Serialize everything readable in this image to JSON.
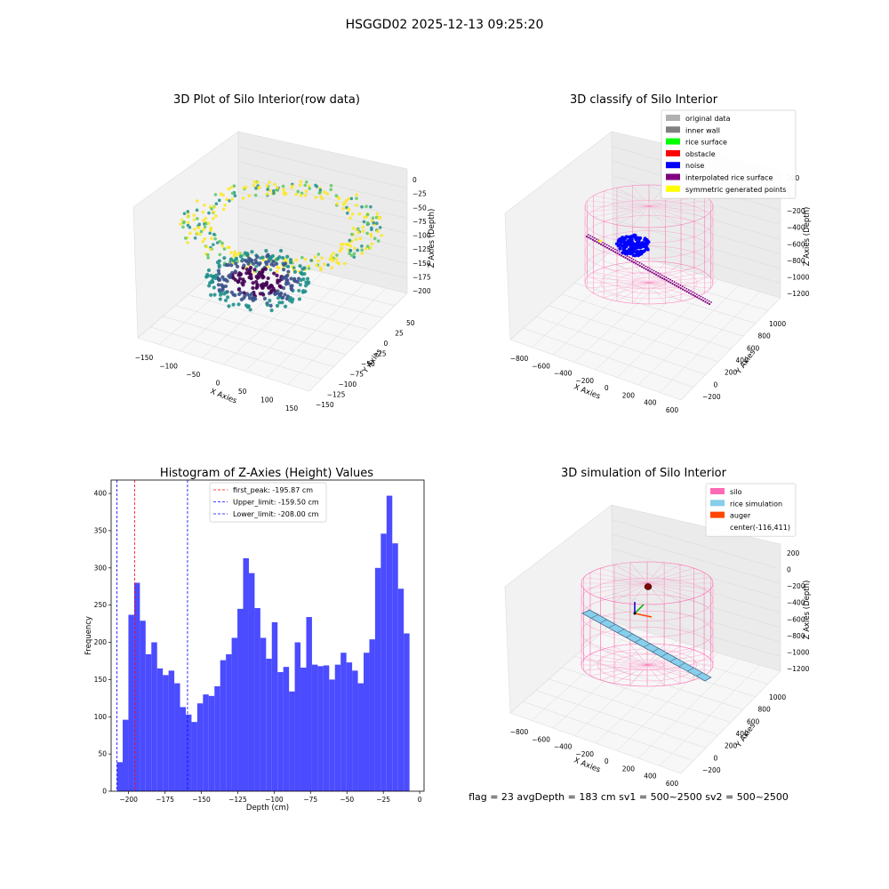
{
  "figure": {
    "suptitle": "HSGGD02 2025-12-13 09:25:20",
    "status_line": "flag = 23   avgDepth = 183 cm  sv1 = 500~2500  sv2 = 500~2500"
  },
  "plot3d_raw": {
    "title": "3D Plot of Silo Interior(row data)",
    "xlabel": "X Axies",
    "ylabel": "Y Axies",
    "zlabel": "Z Axies (Depth)",
    "x_ticks": [
      "−150",
      "−100",
      "−50",
      "0",
      "50",
      "100",
      "150"
    ],
    "y_ticks": [
      "−150",
      "−125",
      "−100",
      "−75",
      "−50",
      "−25",
      "0",
      "25",
      "50"
    ],
    "z_ticks": [
      "0",
      "−25",
      "−50",
      "−75",
      "−100",
      "−125",
      "−150",
      "−175",
      "−200"
    ],
    "colormap": [
      "#440154",
      "#3b528b",
      "#21908c",
      "#5dc863",
      "#fde725"
    ]
  },
  "plot3d_classify": {
    "title": "3D classify of Silo Interior",
    "xlabel": "X Axies",
    "ylabel": "Y Axies",
    "zlabel": "Z Axies (Depth)",
    "x_ticks": [
      "−800",
      "−600",
      "−400",
      "−200",
      "0",
      "200",
      "400",
      "600"
    ],
    "y_ticks": [
      "−200",
      "0",
      "200",
      "400",
      "600",
      "800",
      "1000"
    ],
    "z_ticks": [
      "200",
      "0",
      "−200",
      "−400",
      "−600",
      "−800",
      "−1000",
      "−1200"
    ],
    "legend": [
      {
        "label": "original data",
        "color": "#b0b0b0"
      },
      {
        "label": "inner wall",
        "color": "#808080"
      },
      {
        "label": "rice surface",
        "color": "#00ff00"
      },
      {
        "label": "obstacle",
        "color": "#ff0000"
      },
      {
        "label": "noise",
        "color": "#0000ff"
      },
      {
        "label": "interpolated rice surface",
        "color": "#800080"
      },
      {
        "label": "symmetric generated points",
        "color": "#ffff00"
      }
    ],
    "silo_color": "#ff69b4"
  },
  "plot3d_sim": {
    "title": "3D simulation of Silo Interior",
    "xlabel": "X Axies",
    "ylabel": "Y Axies",
    "zlabel": "Z Axies (Depth)",
    "x_ticks": [
      "−800",
      "−600",
      "−400",
      "−200",
      "0",
      "200",
      "400",
      "600"
    ],
    "y_ticks": [
      "−200",
      "0",
      "200",
      "400",
      "600",
      "800",
      "1000"
    ],
    "z_ticks": [
      "200",
      "0",
      "−200",
      "−400",
      "−600",
      "−800",
      "−1000",
      "−1200"
    ],
    "legend": [
      {
        "label": "silo",
        "color": "#ff69b4"
      },
      {
        "label": "rice simulation",
        "color": "#87ceeb"
      },
      {
        "label": "auger",
        "color": "#ff4500"
      },
      {
        "label": "center(-116,411)",
        "color": ""
      }
    ]
  },
  "chart_data": {
    "type": "bar",
    "title": "Histogram of Z-Axies (Height) Values",
    "xlabel": "Depth (cm)",
    "ylabel": "Frequency",
    "xlim": [
      -212,
      3
    ],
    "ylim": [
      0,
      418
    ],
    "x_ticks": [
      -200,
      -175,
      -150,
      -125,
      -100,
      -75,
      -50,
      -25,
      0
    ],
    "x_tick_labels": [
      "−200",
      "−175",
      "−150",
      "−125",
      "−100",
      "−75",
      "−50",
      "−25",
      "0"
    ],
    "y_ticks": [
      0,
      50,
      100,
      150,
      200,
      250,
      300,
      350,
      400
    ],
    "y_tick_labels": [
      "0",
      "50",
      "100",
      "150",
      "200",
      "250",
      "300",
      "350",
      "400"
    ],
    "bar_color": "#4b4bff",
    "bins_start": -208.0,
    "bins_end": -7.0,
    "values": [
      39,
      96,
      237,
      280,
      229,
      184,
      200,
      165,
      156,
      162,
      145,
      113,
      103,
      93,
      118,
      130,
      128,
      141,
      176,
      184,
      206,
      245,
      313,
      293,
      246,
      206,
      178,
      227,
      160,
      167,
      134,
      200,
      166,
      234,
      170,
      168,
      169,
      150,
      170,
      186,
      173,
      162,
      145,
      186,
      204,
      300,
      346,
      397,
      333,
      272,
      212
    ],
    "vlines": [
      {
        "x": -195.87,
        "color": "#ff0000",
        "label": "first_peak: -195.87 cm"
      },
      {
        "x": -159.5,
        "color": "#0000ff",
        "label": "Upper_limit: -159.50 cm"
      },
      {
        "x": -208.0,
        "color": "#0000ff",
        "label": "Lower_limit: -208.00 cm"
      }
    ]
  }
}
